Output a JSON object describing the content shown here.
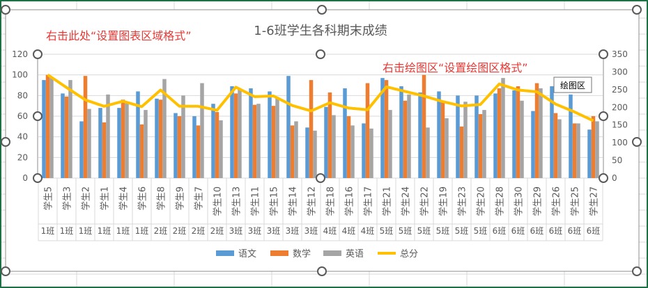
{
  "annotations": {
    "chart_area_hint": "右击此处“设置图表区域格式”",
    "plot_area_hint": "右击绘图区“设置绘图区格式”",
    "tooltip": "绘图区"
  },
  "colors": {
    "yuwen": "#5B9BD5",
    "shuxue": "#ED7D31",
    "yingyu": "#A5A5A5",
    "zongfen": "#FFC000",
    "annotation": "#E53935",
    "sheet_border": "#1E7145"
  },
  "chart_data": {
    "type": "bar",
    "title": "1-6班学生各科期末成绩",
    "categories": [
      {
        "student": "学生5",
        "class": "1班"
      },
      {
        "student": "学生3",
        "class": "1班"
      },
      {
        "student": "学生2",
        "class": "1班"
      },
      {
        "student": "学生1",
        "class": "1班"
      },
      {
        "student": "学生4",
        "class": "1班"
      },
      {
        "student": "学生6",
        "class": "1班"
      },
      {
        "student": "学生8",
        "class": "2班"
      },
      {
        "student": "学生9",
        "class": "2班"
      },
      {
        "student": "学生7",
        "class": "2班"
      },
      {
        "student": "学生10",
        "class": "2班"
      },
      {
        "student": "学生13",
        "class": "3班"
      },
      {
        "student": "学生11",
        "class": "3班"
      },
      {
        "student": "学生15",
        "class": "3班"
      },
      {
        "student": "学生14",
        "class": "3班"
      },
      {
        "student": "学生12",
        "class": "3班"
      },
      {
        "student": "学生18",
        "class": "4班"
      },
      {
        "student": "学生16",
        "class": "4班"
      },
      {
        "student": "学生17",
        "class": "4班"
      },
      {
        "student": "学生21",
        "class": "5班"
      },
      {
        "student": "学生24",
        "class": "5班"
      },
      {
        "student": "学生22",
        "class": "5班"
      },
      {
        "student": "学生19",
        "class": "5班"
      },
      {
        "student": "学生23",
        "class": "5班"
      },
      {
        "student": "学生20",
        "class": "5班"
      },
      {
        "student": "学生28",
        "class": "6班"
      },
      {
        "student": "学生30",
        "class": "6班"
      },
      {
        "student": "学生29",
        "class": "6班"
      },
      {
        "student": "学生26",
        "class": "6班"
      },
      {
        "student": "学生25",
        "class": "6班"
      },
      {
        "student": "学生27",
        "class": "6班"
      }
    ],
    "series": [
      {
        "name": "语文",
        "type": "bar",
        "axis": "left",
        "values": [
          95,
          82,
          55,
          68,
          68,
          84,
          77,
          63,
          60,
          72,
          89,
          87,
          84,
          99,
          49,
          69,
          87,
          53,
          97,
          89,
          83,
          84,
          80,
          80,
          82,
          85,
          65,
          89,
          81,
          47
        ]
      },
      {
        "name": "数学",
        "type": "bar",
        "axis": "left",
        "values": [
          100,
          79,
          99,
          54,
          76,
          52,
          76,
          60,
          51,
          64,
          82,
          71,
          70,
          51,
          95,
          83,
          60,
          92,
          95,
          75,
          100,
          74,
          50,
          62,
          87,
          89,
          92,
          63,
          53,
          60
        ]
      },
      {
        "name": "英语",
        "type": "bar",
        "axis": "left",
        "values": [
          97,
          95,
          67,
          81,
          73,
          66,
          96,
          80,
          92,
          56,
          86,
          72,
          78,
          55,
          46,
          61,
          51,
          48,
          66,
          81,
          49,
          58,
          74,
          66,
          97,
          75,
          87,
          57,
          53,
          55
        ]
      },
      {
        "name": "总分",
        "type": "line",
        "axis": "right",
        "values": [
          292,
          256,
          221,
          203,
          217,
          202,
          249,
          203,
          203,
          192,
          257,
          230,
          232,
          205,
          190,
          213,
          198,
          193,
          258,
          245,
          232,
          216,
          204,
          208,
          266,
          249,
          244,
          209,
          187,
          162
        ]
      }
    ],
    "left_axis": {
      "ylim": [
        0,
        120
      ],
      "ticks": [
        0,
        20,
        40,
        60,
        80,
        100,
        120
      ]
    },
    "right_axis": {
      "ylim": [
        0,
        350
      ],
      "ticks": [
        0,
        50,
        100,
        150,
        200,
        250,
        300,
        350
      ]
    },
    "legend_position": "bottom",
    "grid": true
  }
}
